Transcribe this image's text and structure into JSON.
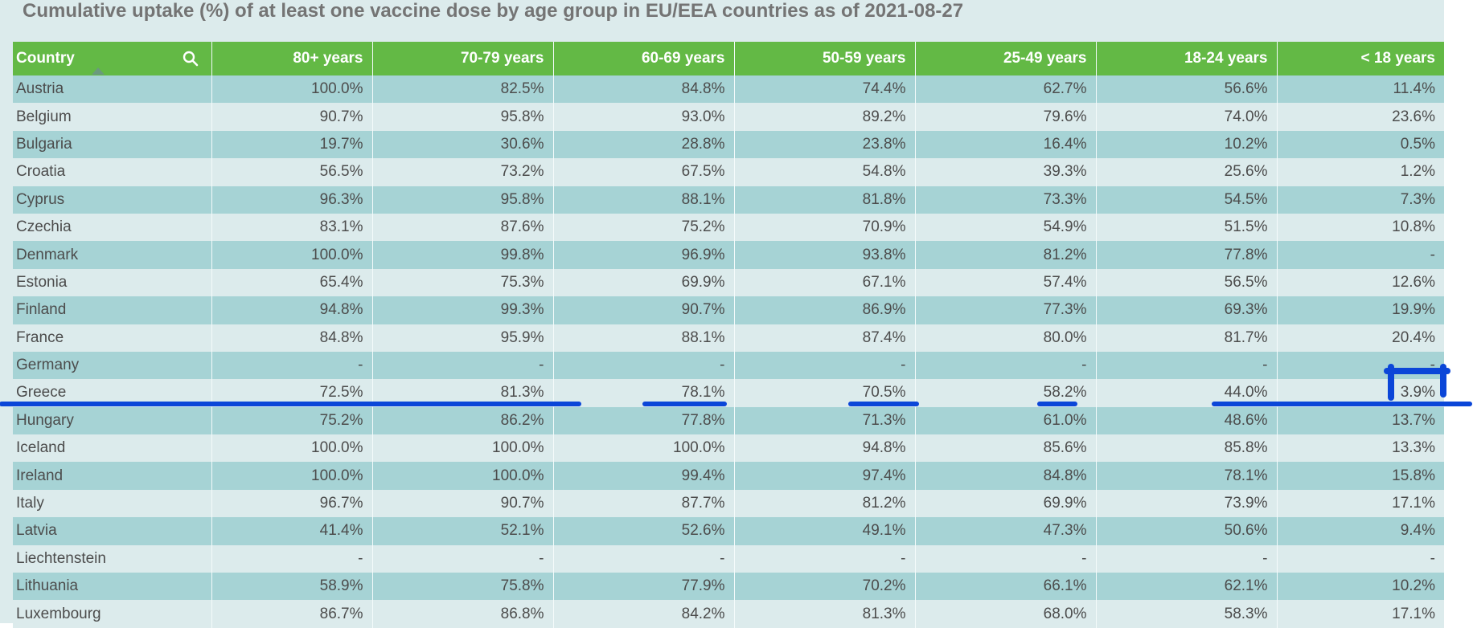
{
  "title": "Cumulative uptake (%) of at least one vaccine dose by age group in EU/EEA countries as of 2021-08-27",
  "colors": {
    "header_bg": "#63b945",
    "row_dark": "#a6d3d5",
    "row_light": "#dcebec",
    "annotation": "#0b46d8"
  },
  "table": {
    "headers": [
      "Country",
      "80+ years",
      "70-79 years",
      "60-69 years",
      "50-59 years",
      "25-49 years",
      "18-24 years",
      "< 18 years"
    ],
    "header_icons": {
      "search": "search-icon",
      "sort": "sort-up-icon"
    },
    "rows": [
      [
        "Austria",
        "100.0%",
        "82.5%",
        "84.8%",
        "74.4%",
        "62.7%",
        "56.6%",
        "11.4%"
      ],
      [
        "Belgium",
        "90.7%",
        "95.8%",
        "93.0%",
        "89.2%",
        "79.6%",
        "74.0%",
        "23.6%"
      ],
      [
        "Bulgaria",
        "19.7%",
        "30.6%",
        "28.8%",
        "23.8%",
        "16.4%",
        "10.2%",
        "0.5%"
      ],
      [
        "Croatia",
        "56.5%",
        "73.2%",
        "67.5%",
        "54.8%",
        "39.3%",
        "25.6%",
        "1.2%"
      ],
      [
        "Cyprus",
        "96.3%",
        "95.8%",
        "88.1%",
        "81.8%",
        "73.3%",
        "54.5%",
        "7.3%"
      ],
      [
        "Czechia",
        "83.1%",
        "87.6%",
        "75.2%",
        "70.9%",
        "54.9%",
        "51.5%",
        "10.8%"
      ],
      [
        "Denmark",
        "100.0%",
        "99.8%",
        "96.9%",
        "93.8%",
        "81.2%",
        "77.8%",
        "-"
      ],
      [
        "Estonia",
        "65.4%",
        "75.3%",
        "69.9%",
        "67.1%",
        "57.4%",
        "56.5%",
        "12.6%"
      ],
      [
        "Finland",
        "94.8%",
        "99.3%",
        "90.7%",
        "86.9%",
        "77.3%",
        "69.3%",
        "19.9%"
      ],
      [
        "France",
        "84.8%",
        "95.9%",
        "88.1%",
        "87.4%",
        "80.0%",
        "81.7%",
        "20.4%"
      ],
      [
        "Germany",
        "-",
        "-",
        "-",
        "-",
        "-",
        "-",
        "-"
      ],
      [
        "Greece",
        "72.5%",
        "81.3%",
        "78.1%",
        "70.5%",
        "58.2%",
        "44.0%",
        "3.9%"
      ],
      [
        "Hungary",
        "75.2%",
        "86.2%",
        "77.8%",
        "71.3%",
        "61.0%",
        "48.6%",
        "13.7%"
      ],
      [
        "Iceland",
        "100.0%",
        "100.0%",
        "100.0%",
        "94.8%",
        "85.6%",
        "85.8%",
        "13.3%"
      ],
      [
        "Ireland",
        "100.0%",
        "100.0%",
        "99.4%",
        "97.4%",
        "84.8%",
        "78.1%",
        "15.8%"
      ],
      [
        "Italy",
        "96.7%",
        "90.7%",
        "87.7%",
        "81.2%",
        "69.9%",
        "73.9%",
        "17.1%"
      ],
      [
        "Latvia",
        "41.4%",
        "52.1%",
        "52.6%",
        "49.1%",
        "47.3%",
        "50.6%",
        "9.4%"
      ],
      [
        "Liechtenstein",
        "-",
        "-",
        "-",
        "-",
        "-",
        "-",
        "-"
      ],
      [
        "Lithuania",
        "58.9%",
        "75.8%",
        "77.9%",
        "70.2%",
        "66.1%",
        "62.1%",
        "10.2%"
      ],
      [
        "Luxembourg",
        "86.7%",
        "86.8%",
        "84.2%",
        "81.3%",
        "68.0%",
        "58.3%",
        "17.1%"
      ]
    ]
  }
}
